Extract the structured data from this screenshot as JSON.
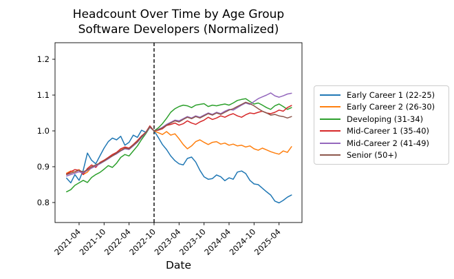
{
  "window": {
    "background": "#ffffff",
    "text_color": "#000000"
  },
  "chart_data": {
    "type": "line",
    "title": "Headcount Over Time by Age Group",
    "subtitle": "Software Developers (Normalized)",
    "xlabel": "Date",
    "ylabel": "",
    "grid": false,
    "legend_position": "outside-right",
    "ylim": [
      0.7442,
      1.2462
    ],
    "yticks": [
      0.8,
      0.9,
      1.0,
      1.1,
      1.2
    ],
    "xtick_labels": [
      "2021-04",
      "2021-10",
      "2022-04",
      "2022-10",
      "2023-04",
      "2023-10",
      "2024-04",
      "2024-10",
      "2025-04"
    ],
    "event_line": {
      "x": "2022-10",
      "style": "dashed",
      "color": "#000000"
    },
    "x": [
      "2021-01",
      "2021-02",
      "2021-03",
      "2021-04",
      "2021-05",
      "2021-06",
      "2021-07",
      "2021-08",
      "2021-09",
      "2021-10",
      "2021-11",
      "2021-12",
      "2022-01",
      "2022-02",
      "2022-03",
      "2022-04",
      "2022-05",
      "2022-06",
      "2022-07",
      "2022-08",
      "2022-09",
      "2022-10",
      "2022-11",
      "2022-12",
      "2023-01",
      "2023-02",
      "2023-03",
      "2023-04",
      "2023-05",
      "2023-06",
      "2023-07",
      "2023-08",
      "2023-09",
      "2023-10",
      "2023-11",
      "2023-12",
      "2024-01",
      "2024-02",
      "2024-03",
      "2024-04",
      "2024-05",
      "2024-06",
      "2024-07",
      "2024-08",
      "2024-09",
      "2024-10",
      "2024-11",
      "2024-12",
      "2025-01",
      "2025-02",
      "2025-03",
      "2025-04",
      "2025-05",
      "2025-06",
      "2025-07"
    ],
    "series": [
      {
        "label": "Early Career 1 (22-25)",
        "color": "#1f77b4",
        "values": [
          0.868,
          0.855,
          0.878,
          0.862,
          0.89,
          0.938,
          0.918,
          0.908,
          0.93,
          0.952,
          0.97,
          0.98,
          0.975,
          0.985,
          0.96,
          0.968,
          0.988,
          0.982,
          1.002,
          0.996,
          1.012,
          1.0,
          0.982,
          0.962,
          0.948,
          0.93,
          0.917,
          0.908,
          0.905,
          0.923,
          0.927,
          0.913,
          0.89,
          0.872,
          0.865,
          0.867,
          0.877,
          0.872,
          0.861,
          0.869,
          0.865,
          0.885,
          0.888,
          0.881,
          0.862,
          0.852,
          0.85,
          0.84,
          0.83,
          0.821,
          0.804,
          0.799,
          0.806,
          0.815,
          0.821
        ]
      },
      {
        "label": "Early Career 2 (26-30)",
        "color": "#ff7f0e",
        "values": [
          0.882,
          0.888,
          0.885,
          0.892,
          0.878,
          0.885,
          0.898,
          0.905,
          0.91,
          0.918,
          0.925,
          0.932,
          0.938,
          0.946,
          0.952,
          0.95,
          0.958,
          0.97,
          0.983,
          0.993,
          1.013,
          1.0,
          0.995,
          0.99,
          0.998,
          0.988,
          0.992,
          0.978,
          0.962,
          0.95,
          0.958,
          0.97,
          0.975,
          0.968,
          0.962,
          0.968,
          0.97,
          0.963,
          0.966,
          0.96,
          0.963,
          0.958,
          0.96,
          0.955,
          0.958,
          0.95,
          0.946,
          0.952,
          0.947,
          0.942,
          0.938,
          0.935,
          0.944,
          0.94,
          0.956
        ]
      },
      {
        "label": "Developing (31-34)",
        "color": "#2ca02c",
        "values": [
          0.83,
          0.836,
          0.848,
          0.855,
          0.862,
          0.856,
          0.87,
          0.878,
          0.884,
          0.893,
          0.903,
          0.898,
          0.91,
          0.926,
          0.934,
          0.93,
          0.944,
          0.958,
          0.976,
          0.992,
          1.01,
          1.0,
          1.008,
          1.02,
          1.035,
          1.052,
          1.062,
          1.068,
          1.072,
          1.07,
          1.065,
          1.072,
          1.074,
          1.076,
          1.068,
          1.072,
          1.07,
          1.073,
          1.075,
          1.072,
          1.078,
          1.085,
          1.088,
          1.09,
          1.082,
          1.075,
          1.078,
          1.072,
          1.065,
          1.06,
          1.07,
          1.075,
          1.068,
          1.06,
          1.065
        ]
      },
      {
        "label": "Mid-Career 1 (35-40)",
        "color": "#d62728",
        "values": [
          0.88,
          0.886,
          0.892,
          0.89,
          0.878,
          0.895,
          0.905,
          0.898,
          0.912,
          0.918,
          0.926,
          0.934,
          0.94,
          0.95,
          0.955,
          0.952,
          0.962,
          0.973,
          0.986,
          0.996,
          1.014,
          1.0,
          1.002,
          1.006,
          1.015,
          1.018,
          1.022,
          1.016,
          1.02,
          1.028,
          1.022,
          1.018,
          1.025,
          1.03,
          1.038,
          1.032,
          1.036,
          1.042,
          1.038,
          1.044,
          1.048,
          1.042,
          1.038,
          1.045,
          1.05,
          1.048,
          1.052,
          1.055,
          1.05,
          1.048,
          1.052,
          1.058,
          1.055,
          1.065,
          1.071
        ]
      },
      {
        "label": "Mid-Career 2 (41-49)",
        "color": "#9467bd",
        "values": [
          0.874,
          0.878,
          0.882,
          0.886,
          0.882,
          0.89,
          0.896,
          0.902,
          0.908,
          0.915,
          0.922,
          0.93,
          0.936,
          0.944,
          0.95,
          0.948,
          0.958,
          0.968,
          0.982,
          0.994,
          1.01,
          1.0,
          1.004,
          1.01,
          1.018,
          1.024,
          1.03,
          1.028,
          1.034,
          1.04,
          1.036,
          1.042,
          1.038,
          1.044,
          1.05,
          1.046,
          1.052,
          1.048,
          1.055,
          1.06,
          1.058,
          1.065,
          1.072,
          1.078,
          1.074,
          1.082,
          1.09,
          1.095,
          1.1,
          1.106,
          1.098,
          1.094,
          1.098,
          1.103,
          1.105
        ]
      },
      {
        "label": "Senior (50+)",
        "color": "#8c564b",
        "values": [
          0.878,
          0.882,
          0.886,
          0.89,
          0.885,
          0.892,
          0.9,
          0.905,
          0.91,
          0.916,
          0.924,
          0.93,
          0.938,
          0.945,
          0.952,
          0.95,
          0.96,
          0.97,
          0.984,
          0.995,
          1.012,
          1.0,
          1.003,
          1.008,
          1.016,
          1.022,
          1.028,
          1.025,
          1.032,
          1.038,
          1.034,
          1.04,
          1.036,
          1.042,
          1.048,
          1.044,
          1.05,
          1.046,
          1.052,
          1.058,
          1.062,
          1.068,
          1.074,
          1.08,
          1.076,
          1.07,
          1.062,
          1.055,
          1.05,
          1.044,
          1.046,
          1.042,
          1.04,
          1.036,
          1.04
        ]
      }
    ]
  }
}
